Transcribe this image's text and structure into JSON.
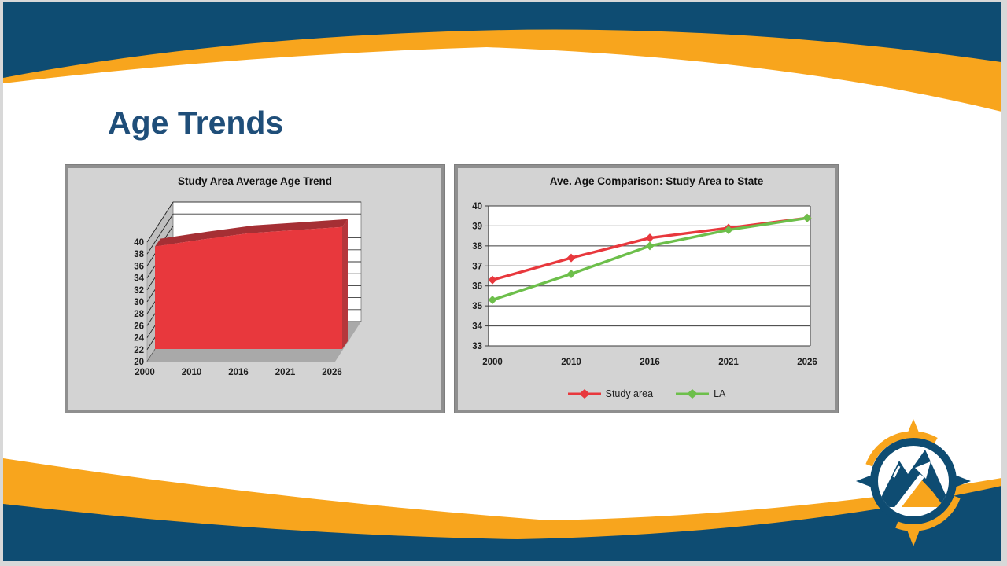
{
  "slide": {
    "title": "Age Trends",
    "background": "#FFFFFF",
    "frame_color": "#D8D8D8",
    "colors": {
      "navy": "#0E4C72",
      "orange": "#F8A51D",
      "title_blue": "#1F4E79"
    }
  },
  "panels": {
    "background": "#D3D3D3",
    "border_color": "#8F8F8F"
  },
  "chart_data": [
    {
      "type": "area",
      "variant": "3d",
      "title": "Study Area Average Age Trend",
      "categories": [
        "2000",
        "2010",
        "2016",
        "2021",
        "2026"
      ],
      "series": [
        {
          "name": "Study area",
          "color": "#E8383D",
          "color_top": "#A52F34",
          "color_side": "#B5373C",
          "values": [
            36.3,
            37.4,
            38.4,
            38.9,
            39.4
          ]
        }
      ],
      "ylim": [
        20,
        40
      ],
      "ystep": 2,
      "grid": true,
      "legend": "none",
      "walls": {
        "back": "#FFFFFF",
        "side": "#BFBFBF",
        "floor": "#A9A9A9",
        "gridline": "#3A3A3A"
      }
    },
    {
      "type": "line",
      "title": "Ave. Age Comparison: Study Area to State",
      "categories": [
        "2000",
        "2010",
        "2016",
        "2021",
        "2026"
      ],
      "series": [
        {
          "name": "Study area",
          "color": "#E8383D",
          "values": [
            36.3,
            37.4,
            38.4,
            38.9,
            39.4
          ]
        },
        {
          "name": "LA",
          "color": "#6DBF4B",
          "values": [
            35.3,
            36.6,
            38.0,
            38.8,
            39.4
          ]
        }
      ],
      "ylim": [
        33,
        40
      ],
      "ystep": 1,
      "grid": true,
      "legend": "bottom",
      "marker": "diamond",
      "plot_background": "#FFFFFF",
      "gridline_color": "#3A3A3A"
    }
  ],
  "logo": {
    "name": "compass-mountain-logo",
    "colors": {
      "navy": "#0E4C72",
      "orange": "#F8A51D",
      "white": "#FFFFFF"
    }
  }
}
